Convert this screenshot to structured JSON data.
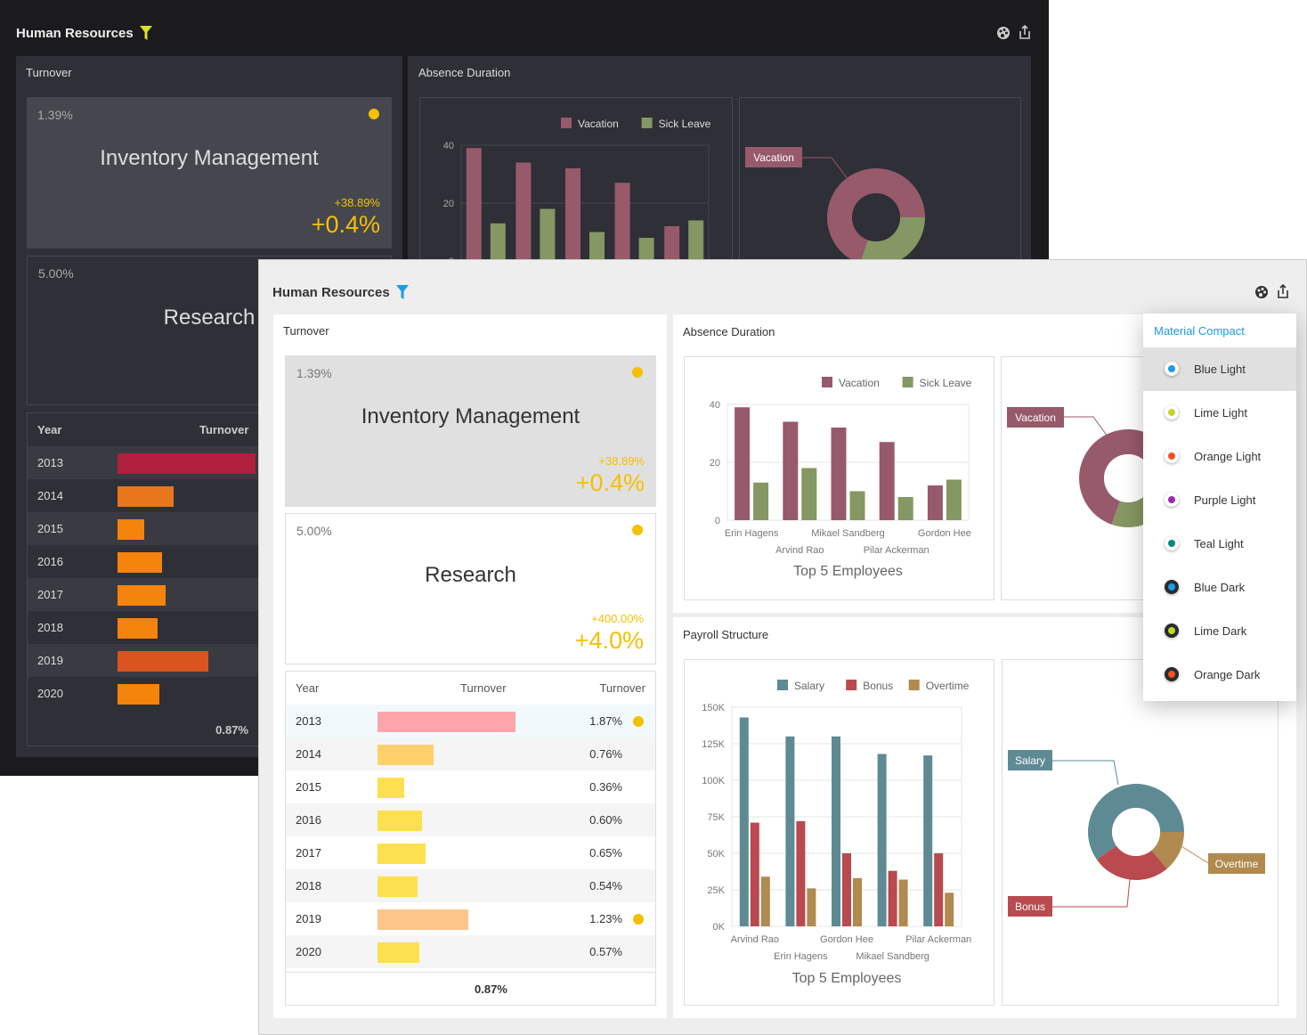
{
  "dashboard_title": "Human Resources",
  "turnover": {
    "title": "Turnover",
    "cards": [
      {
        "name": "Inventory Management",
        "target": "1.39%",
        "delta_pct": "+38.89%",
        "delta": "+0.4%"
      },
      {
        "name": "Research",
        "target": "5.00%",
        "delta_pct": "+400.00%",
        "delta": "+4.0%"
      }
    ],
    "table": {
      "headers": [
        "Year",
        "Turnover",
        "Turnover"
      ],
      "rows": [
        {
          "year": "2013",
          "value": 1.87,
          "label": "1.87%",
          "flag": true
        },
        {
          "year": "2014",
          "value": 0.76,
          "label": "0.76%",
          "flag": false
        },
        {
          "year": "2015",
          "value": 0.36,
          "label": "0.36%",
          "flag": false
        },
        {
          "year": "2016",
          "value": 0.6,
          "label": "0.60%",
          "flag": false
        },
        {
          "year": "2017",
          "value": 0.65,
          "label": "0.65%",
          "flag": false
        },
        {
          "year": "2018",
          "value": 0.54,
          "label": "0.54%",
          "flag": false
        },
        {
          "year": "2019",
          "value": 1.23,
          "label": "1.23%",
          "flag": true
        },
        {
          "year": "2020",
          "value": 0.57,
          "label": "0.57%",
          "flag": false
        }
      ],
      "total": "0.87%"
    }
  },
  "absence": {
    "title": "Absence Duration",
    "pie_label": "Vacation"
  },
  "payroll": {
    "title": "Payroll Structure",
    "pie_labels": [
      "Salary",
      "Bonus",
      "Overtime"
    ]
  },
  "chart_data": [
    {
      "type": "bar",
      "title": "Top 5 Employees",
      "categories": [
        "Erin Hagens",
        "Arvind Rao",
        "Mikael Sandberg",
        "Pilar Ackerman",
        "Gordon Hee"
      ],
      "ylim": [
        0,
        40
      ],
      "yticks": [
        "0",
        "20",
        "40"
      ],
      "legend": "top-right",
      "grid": true,
      "series": [
        {
          "name": "Vacation",
          "values": [
            39,
            34,
            32,
            27,
            12
          ],
          "color": "#975a6b"
        },
        {
          "name": "Sick Leave",
          "values": [
            13,
            18,
            10,
            8,
            14
          ],
          "color": "#859763"
        }
      ]
    },
    {
      "type": "bar",
      "title": "Top 5 Employees",
      "categories": [
        "Arvind Rao",
        "Erin Hagens",
        "Gordon Hee",
        "Mikael Sandberg",
        "Pilar Ackerman"
      ],
      "ylim": [
        0,
        150000
      ],
      "yticks": [
        "0K",
        "25K",
        "50K",
        "75K",
        "100K",
        "125K",
        "150K"
      ],
      "legend": "top-right",
      "grid": true,
      "series": [
        {
          "name": "Salary",
          "values": [
            143000,
            130000,
            130000,
            118000,
            117000
          ],
          "color": "#5e8a94"
        },
        {
          "name": "Bonus",
          "values": [
            71000,
            72000,
            50000,
            38000,
            50000
          ],
          "color": "#b94a4f"
        },
        {
          "name": "Overtime",
          "values": [
            34000,
            26000,
            33000,
            32000,
            23000
          ],
          "color": "#b08a4e"
        }
      ]
    }
  ],
  "theme_menu": {
    "header": "Material Compact",
    "selected": "Blue Light",
    "items": [
      {
        "label": "Blue Light",
        "color": "#1e9be9",
        "dark": false
      },
      {
        "label": "Lime Light",
        "color": "#c0d62f",
        "dark": false
      },
      {
        "label": "Orange Light",
        "color": "#f4511e",
        "dark": false
      },
      {
        "label": "Purple Light",
        "color": "#9c27b0",
        "dark": false
      },
      {
        "label": "Teal Light",
        "color": "#00897b",
        "dark": false
      },
      {
        "label": "Blue Dark",
        "color": "#1e9be9",
        "dark": true
      },
      {
        "label": "Lime Dark",
        "color": "#c0d62f",
        "dark": true
      },
      {
        "label": "Orange Dark",
        "color": "#f4511e",
        "dark": true
      }
    ]
  },
  "colors": {
    "dark_accent": "#d7e225",
    "light_accent": "#1e9be9",
    "indicator": "#f5c000",
    "delta": "#f5c000"
  }
}
